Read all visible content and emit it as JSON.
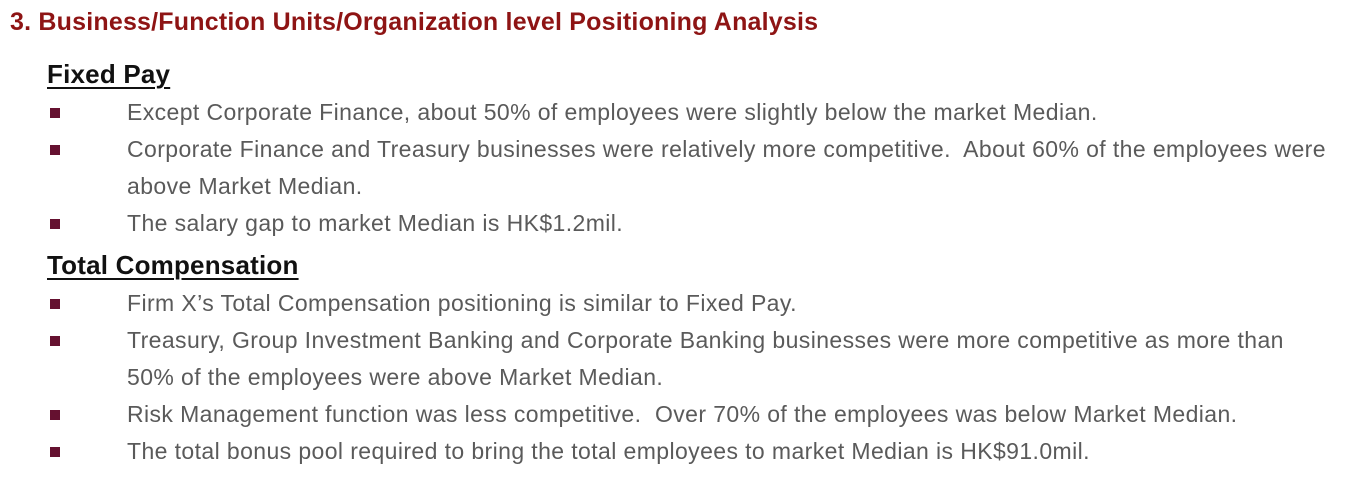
{
  "page": {
    "title": "3. Business/Function Units/Organization level Positioning Analysis"
  },
  "colors": {
    "title_red": "#8e1414",
    "bullet_maroon": "#651130",
    "body_gray": "#5a5a5a",
    "heading_black": "#111111"
  },
  "sections": [
    {
      "heading": "Fixed Pay",
      "bullets": [
        "Except Corporate Finance, about 50% of employees were slightly below the market Median.",
        "Corporate Finance and Treasury businesses were relatively more competitive.  About 60% of the employees were above Market Median.",
        "The salary gap to market Median is HK$1.2mil."
      ]
    },
    {
      "heading": "Total Compensation",
      "bullets": [
        "Firm X’s Total Compensation positioning is similar to Fixed Pay.",
        "Treasury, Group Investment Banking and Corporate Banking businesses were more competitive as more than 50% of the employees were above Market Median.",
        "Risk Management function was less competitive.  Over 70% of the employees was below Market Median.",
        "The total bonus pool required to bring the total employees to market Median is HK$91.0mil."
      ]
    }
  ]
}
